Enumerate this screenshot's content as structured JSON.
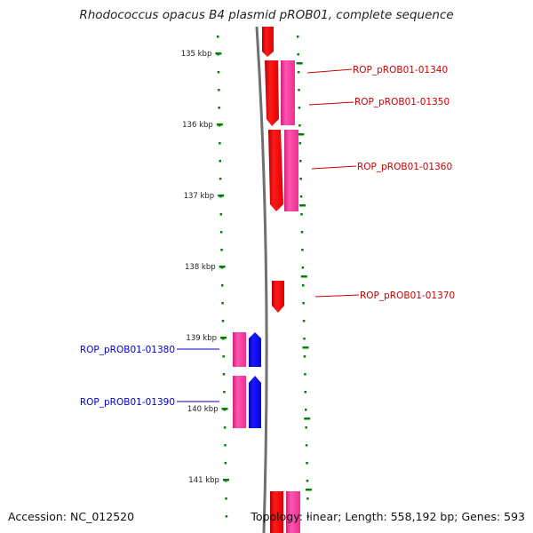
{
  "title": "Rhodococcus opacus B4 plasmid pROB01, complete sequence",
  "accession": "Accession: NC_012520",
  "summary": "Topology: linear; Length: 558,192 bp; Genes: 593",
  "colors": {
    "red": "#ff0000",
    "pink": "#ff3399",
    "blue": "#0000ff",
    "tick": "#008000",
    "backbone": "#808080"
  },
  "ruler": {
    "ticks": [
      {
        "kbp": 135,
        "label": "135 kbp"
      },
      {
        "kbp": 136,
        "label": "136 kbp"
      },
      {
        "kbp": 137,
        "label": "137 kbp"
      },
      {
        "kbp": 138,
        "label": "138 kbp"
      },
      {
        "kbp": 139,
        "label": "139 kbp"
      },
      {
        "kbp": 140,
        "label": "140 kbp"
      },
      {
        "kbp": 141,
        "label": "141 kbp"
      }
    ]
  },
  "genes": [
    {
      "label": "ROP_pROB01-01340",
      "color": "red"
    },
    {
      "label": "ROP_pROB01-01350",
      "color": "red"
    },
    {
      "label": "ROP_pROB01-01360",
      "color": "red"
    },
    {
      "label": "ROP_pROB01-01370",
      "color": "red"
    },
    {
      "label": "ROP_pROB01-01380",
      "color": "blue"
    },
    {
      "label": "ROP_pROB01-01390",
      "color": "blue"
    }
  ]
}
